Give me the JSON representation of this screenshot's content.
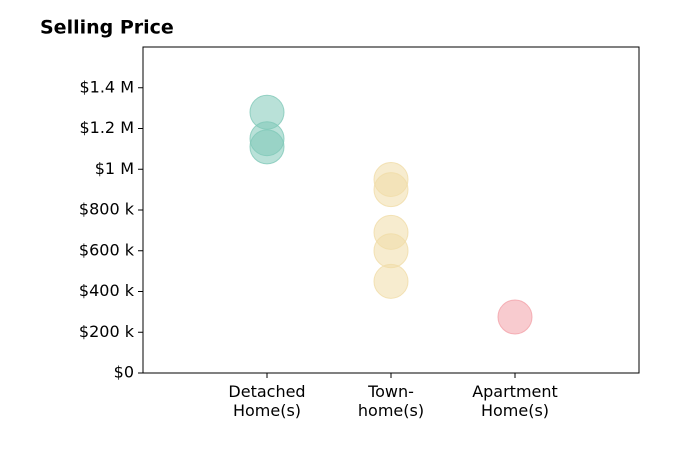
{
  "chart_data": {
    "type": "strip",
    "title": "Selling Price",
    "categories": [
      "Detached\nHome(s)",
      "Town-\nhome(s)",
      "Apartment\nHome(s)"
    ],
    "values": [
      [
        1280000,
        1150000,
        1110000
      ],
      [
        950000,
        900000,
        690000,
        600000,
        450000
      ],
      [
        275000
      ]
    ],
    "colors": [
      "#7fc8b8",
      "#f0dca8",
      "#f2a0a8"
    ],
    "ylim": [
      0,
      1600000
    ],
    "yticks": [
      {
        "value": 0,
        "label": "$0"
      },
      {
        "value": 200000,
        "label": "$200 k"
      },
      {
        "value": 400000,
        "label": "$400 k"
      },
      {
        "value": 600000,
        "label": "$600 k"
      },
      {
        "value": 800000,
        "label": "$800 k"
      },
      {
        "value": 1000000,
        "label": "$1 M"
      },
      {
        "value": 1200000,
        "label": "$1.2 M"
      },
      {
        "value": 1400000,
        "label": "$1.4 M"
      }
    ],
    "grid": false
  }
}
